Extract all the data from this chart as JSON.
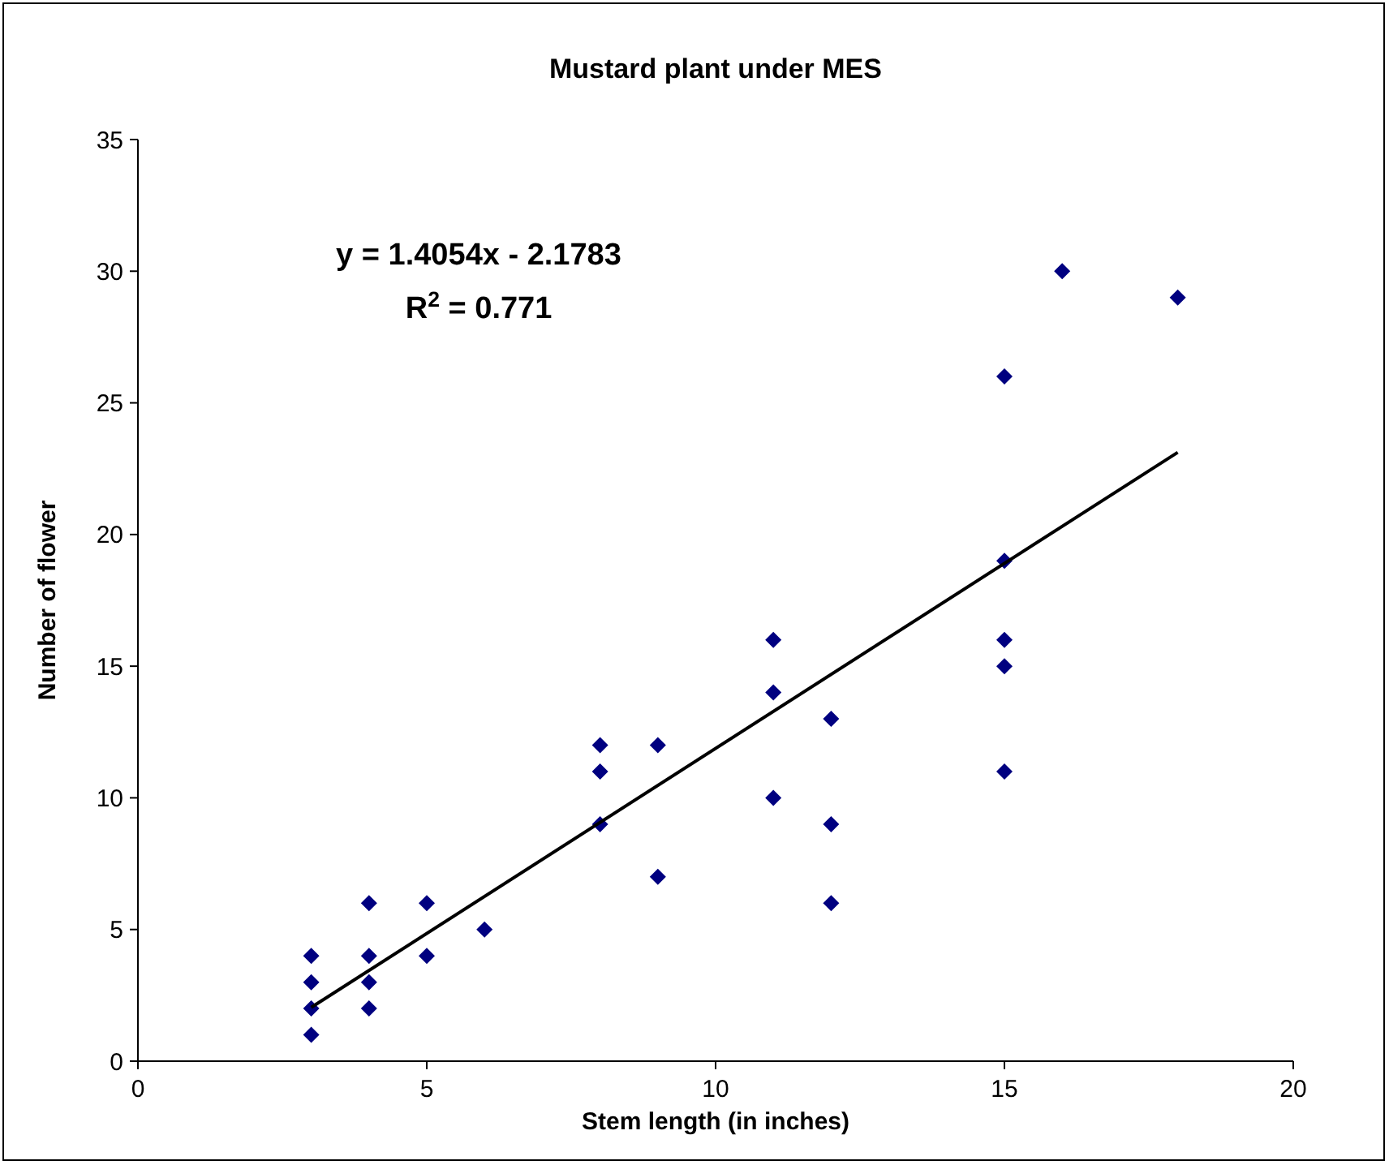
{
  "chart_data": {
    "type": "scatter",
    "title": "Mustard plant under MES",
    "xlabel": "Stem length (in inches)",
    "ylabel": "Number of flower",
    "xlim": [
      0,
      20
    ],
    "xticks": [
      0,
      5,
      10,
      15,
      20
    ],
    "ylim": [
      0,
      35
    ],
    "yticks": [
      0,
      5,
      10,
      15,
      20,
      25,
      30,
      35
    ],
    "grid": false,
    "marker": "diamond",
    "annotations": [
      "y = 1.4054x - 2.1783",
      "R$^{2}$ = 0.771"
    ],
    "series": [
      {
        "type": "scatter",
        "color": "#000080",
        "x": [
          3,
          3,
          3,
          3,
          4,
          4,
          4,
          4,
          5,
          5,
          6,
          8,
          8,
          8,
          9,
          9,
          11,
          11,
          11,
          12,
          12,
          12,
          15,
          15,
          15,
          15,
          15,
          16,
          18
        ],
        "values": [
          4,
          3,
          2,
          1,
          6,
          4,
          3,
          2,
          6,
          4,
          5,
          12,
          11,
          9,
          12,
          7,
          16,
          14,
          10,
          13,
          9,
          6,
          26,
          19,
          16,
          15,
          11,
          30,
          29
        ]
      },
      {
        "type": "line",
        "color": "#000000",
        "marker": "none",
        "line_style": "solid",
        "x": [
          3,
          18
        ],
        "values": [
          2.04,
          23.12
        ]
      }
    ]
  }
}
